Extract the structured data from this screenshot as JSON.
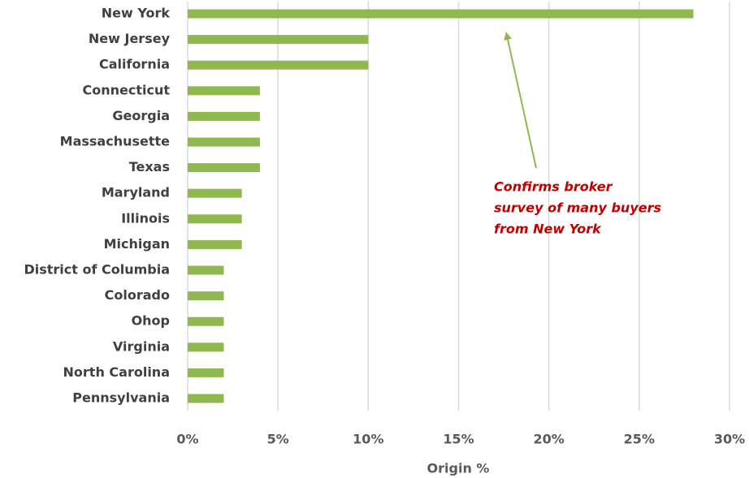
{
  "chart_data": {
    "type": "bar",
    "orientation": "horizontal",
    "categories": [
      "New York",
      "New Jersey",
      "California",
      "Connecticut",
      "Georgia",
      "Massachusette",
      "Texas",
      "Maryland",
      "Illinois",
      "Michigan",
      "District of Columbia",
      "Colorado",
      "Ohop",
      "Virginia",
      "North Carolina",
      "Pennsylvania"
    ],
    "values": [
      28,
      10,
      10,
      4,
      4,
      4,
      4,
      3,
      3,
      3,
      2,
      2,
      2,
      2,
      2,
      2
    ],
    "color": "#8fb84f",
    "xlim": [
      0,
      30
    ],
    "xticks": [
      {
        "value": 0,
        "label": "0%"
      },
      {
        "value": 5,
        "label": "5%"
      },
      {
        "value": 10,
        "label": "10%"
      },
      {
        "value": 15,
        "label": "15%"
      },
      {
        "value": 20,
        "label": "20%"
      },
      {
        "value": 25,
        "label": "25%"
      },
      {
        "value": 30,
        "label": "30%"
      }
    ],
    "x_label": "Origin %",
    "grid": true,
    "annotation": [
      "Confirms broker",
      "survey of many buyers",
      "from New York"
    ]
  }
}
